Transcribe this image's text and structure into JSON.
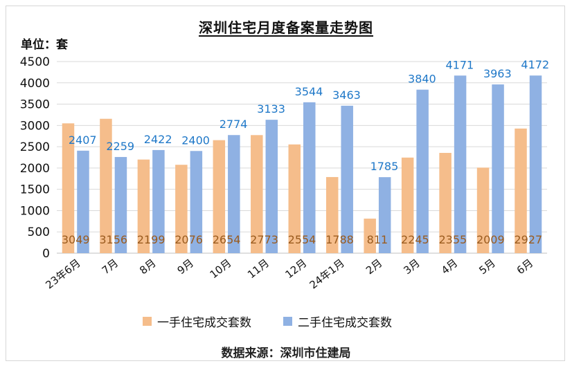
{
  "chart_data": {
    "type": "bar",
    "title": "深圳住宅月度备案量走势图",
    "unit_label": "单位：套",
    "source": "数据来源：深圳市住建局",
    "categories": [
      "23年6月",
      "7月",
      "8月",
      "9月",
      "10月",
      "11月",
      "12月",
      "24年1月",
      "2月",
      "3月",
      "4月",
      "5月",
      "6月"
    ],
    "series": [
      {
        "name": "一手住宅成交套数",
        "color": "#f5bd8b",
        "label_color": "#9a5b1e",
        "values": [
          3049,
          3156,
          2199,
          2076,
          2654,
          2773,
          2554,
          1788,
          811,
          2245,
          2355,
          2009,
          2927
        ]
      },
      {
        "name": "二手住宅成交套数",
        "color": "#8fb1e3",
        "label_color": "#1f78c8",
        "values": [
          2407,
          2259,
          2422,
          2400,
          2774,
          3133,
          3544,
          3463,
          1785,
          3840,
          4171,
          3963,
          4172
        ]
      }
    ],
    "ylim": [
      0,
      4500
    ],
    "yticks": [
      0,
      500,
      1000,
      1500,
      2000,
      2500,
      3000,
      3500,
      4000,
      4500
    ],
    "grid": true,
    "legend_position": "bottom"
  }
}
